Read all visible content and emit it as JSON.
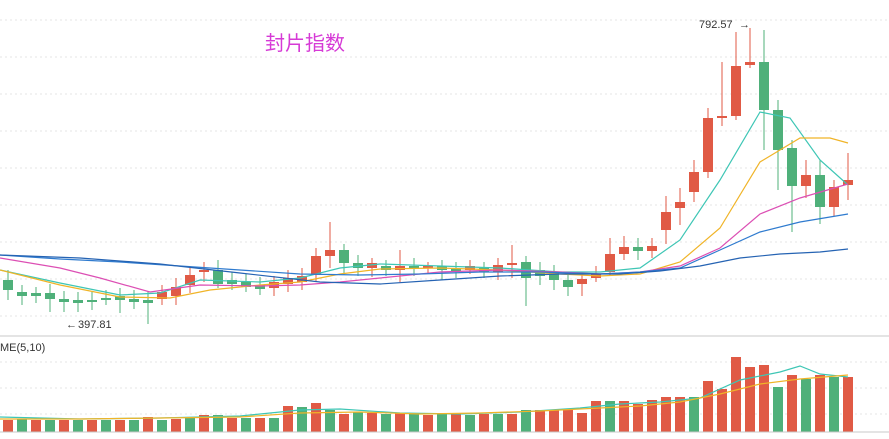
{
  "chart_data": {
    "type": "candlestick",
    "title": "封片指数",
    "high_label": "792.57",
    "low_label": "397.81",
    "volume_indicator": "ME(5,10)",
    "grid": true,
    "legend": "none",
    "up_color": "#e05a45",
    "down_color": "#4fb07a",
    "ma_colors": [
      "#3ec6b5",
      "#f0b428",
      "#dc4fb4",
      "#2f7bcf",
      "#2563b3"
    ],
    "volume_ma_colors": [
      "#3ec6b5",
      "#f0b428"
    ]
  }
}
